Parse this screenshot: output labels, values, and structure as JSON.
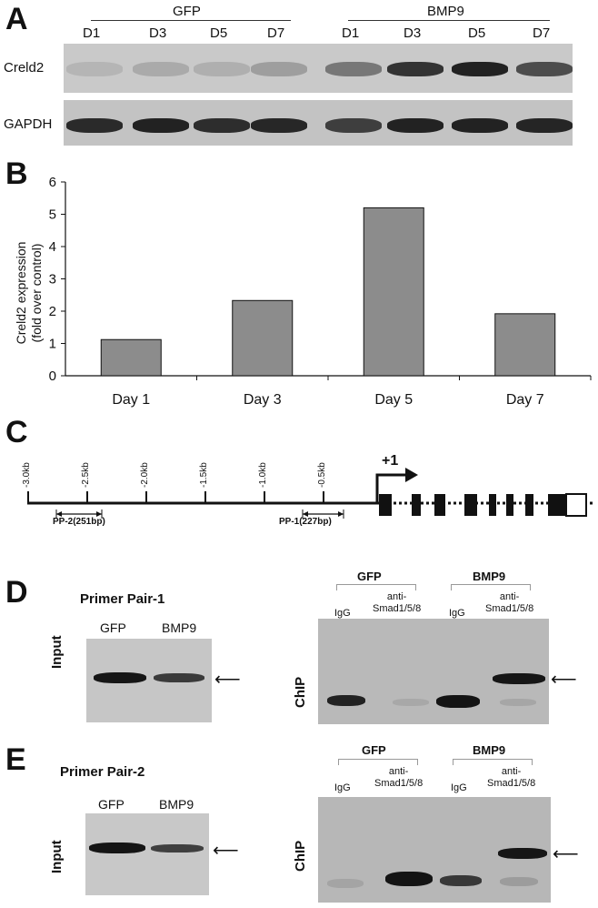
{
  "panelA": {
    "letter": "A",
    "group_labels": [
      "GFP",
      "BMP9"
    ],
    "lanes": [
      "D1",
      "D3",
      "D5",
      "D7",
      "D1",
      "D3",
      "D5",
      "D7"
    ],
    "row_labels": [
      "Creld2",
      "GAPDH"
    ],
    "creld2_intensity": [
      0.08,
      0.15,
      0.12,
      0.22,
      0.45,
      0.85,
      0.95,
      0.7
    ],
    "gapdh_intensity": [
      0.9,
      0.95,
      0.88,
      0.92,
      0.78,
      0.95,
      0.95,
      0.93
    ]
  },
  "panelB": {
    "letter": "B",
    "chart_data": {
      "type": "bar",
      "categories": [
        "Day 1",
        "Day 3",
        "Day 5",
        "Day 7"
      ],
      "values": [
        1.12,
        2.33,
        5.2,
        1.92
      ],
      "ylabel_line1": "Creld2 expression",
      "ylabel_line2": "(fold over control)",
      "ylim": [
        0,
        6
      ],
      "yticks": [
        "0",
        "1",
        "2",
        "3",
        "4",
        "5",
        "6"
      ],
      "bar_color": "#8c8c8c",
      "grid": false
    }
  },
  "panelC": {
    "letter": "C",
    "ticks": [
      "-3.0kb",
      "-2.5kb",
      "-2.0kb",
      "-1.5kb",
      "-1.0kb",
      "-0.5kb"
    ],
    "tss_label": "+1",
    "pp2_label": "PP-2(251bp)",
    "pp1_label": "PP-1(227bp)"
  },
  "panelD": {
    "letter": "D",
    "title": "Primer Pair-1",
    "input_lanes": [
      "GFP",
      "BMP9"
    ],
    "input_label": "Input",
    "chip_groups": [
      "GFP",
      "BMP9"
    ],
    "chip_lanes": [
      "IgG",
      "anti-\nSmad1/5/8",
      "IgG",
      "anti-\nSmad1/5/8"
    ],
    "chip_label": "ChIP"
  },
  "panelE": {
    "letter": "E",
    "title": "Primer Pair-2",
    "input_lanes": [
      "GFP",
      "BMP9"
    ],
    "input_label": "Input",
    "chip_groups": [
      "GFP",
      "BMP9"
    ],
    "chip_lanes": [
      "IgG",
      "anti-\nSmad1/5/8",
      "IgG",
      "anti-\nSmad1/5/8"
    ],
    "chip_label": "ChIP"
  }
}
